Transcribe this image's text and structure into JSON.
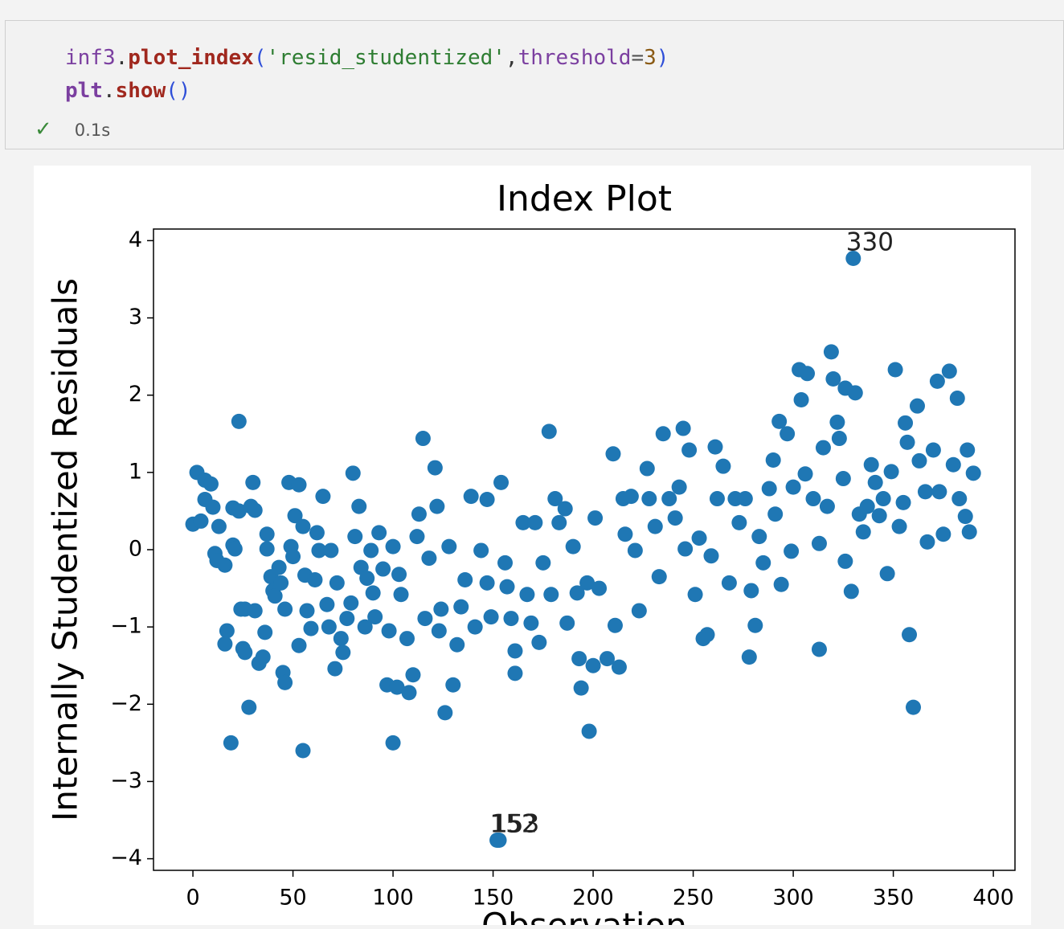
{
  "code": {
    "lines": [
      [
        {
          "text": "inf3",
          "color": "#7b3fa0",
          "bold": false
        },
        {
          "text": ".",
          "color": "#333333",
          "bold": false
        },
        {
          "text": "plot_index",
          "color": "#a0281e",
          "bold": true
        },
        {
          "text": "(",
          "color": "#2f4fd8",
          "bold": false
        },
        {
          "text": "'resid_studentized'",
          "color": "#2e7d32",
          "bold": false
        },
        {
          "text": ",",
          "color": "#333333",
          "bold": false
        },
        {
          "text": "threshold",
          "color": "#7b3fa0",
          "bold": false
        },
        {
          "text": "=",
          "color": "#555555",
          "bold": false
        },
        {
          "text": "3",
          "color": "#8a5a14",
          "bold": false
        },
        {
          "text": ")",
          "color": "#2f4fd8",
          "bold": false
        }
      ],
      [
        {
          "text": "plt",
          "color": "#7b3fa0",
          "bold": true
        },
        {
          "text": ".",
          "color": "#333333",
          "bold": false
        },
        {
          "text": "show",
          "color": "#a0281e",
          "bold": true
        },
        {
          "text": "()",
          "color": "#2f4fd8",
          "bold": false
        }
      ]
    ],
    "status": "0.1s"
  },
  "chart_data": {
    "type": "scatter",
    "title": "Index Plot",
    "xlabel": "Observation",
    "ylabel": "Internally Studentized Residuals",
    "color": "#1f77b4",
    "xlim": [
      -19.7,
      410.8
    ],
    "ylim": [
      -4.15,
      4.15
    ],
    "xticks": [
      0,
      50,
      100,
      150,
      200,
      250,
      300,
      350,
      400
    ],
    "yticks": [
      {
        "value": -4,
        "label": "−4"
      },
      {
        "value": -3,
        "label": "−3"
      },
      {
        "value": -2,
        "label": "−2"
      },
      {
        "value": -1,
        "label": "−1"
      },
      0,
      1,
      2,
      3,
      4
    ],
    "annotations": [
      {
        "text": "330",
        "x": 330,
        "y": 3.77
      },
      {
        "text": "152",
        "x": 152,
        "y": -3.76
      },
      {
        "text": "153",
        "x": 153,
        "y": -3.76
      }
    ],
    "x": [
      0,
      2,
      4,
      6,
      9,
      6,
      10,
      13,
      11,
      12,
      16,
      17,
      16,
      19,
      20,
      21,
      20,
      23,
      23,
      24,
      25,
      26,
      26,
      28,
      30,
      29,
      31,
      31,
      33,
      35,
      36,
      37,
      37,
      39,
      40,
      41,
      43,
      44,
      45,
      46,
      46,
      48,
      49,
      50,
      51,
      53,
      53,
      55,
      55,
      56,
      57,
      59,
      61,
      62,
      63,
      65,
      67,
      68,
      69,
      71,
      72,
      74,
      75,
      77,
      79,
      80,
      81,
      83,
      84,
      86,
      87,
      89,
      90,
      91,
      93,
      95,
      97,
      98,
      100,
      100,
      102,
      103,
      104,
      107,
      108,
      110,
      112,
      113,
      115,
      116,
      118,
      121,
      122,
      123,
      124,
      126,
      128,
      130,
      132,
      134,
      136,
      139,
      141,
      144,
      147,
      147,
      149,
      152,
      153,
      154,
      156,
      157,
      159,
      161,
      161,
      165,
      167,
      169,
      171,
      173,
      175,
      178,
      179,
      181,
      183,
      186,
      187,
      190,
      192,
      193,
      194,
      197,
      198,
      200,
      201,
      203,
      207,
      210,
      211,
      213,
      215,
      216,
      219,
      221,
      223,
      227,
      228,
      231,
      233,
      235,
      238,
      241,
      243,
      245,
      246,
      248,
      251,
      253,
      255,
      257,
      259,
      261,
      262,
      265,
      268,
      271,
      273,
      276,
      278,
      279,
      281,
      283,
      285,
      288,
      290,
      291,
      293,
      294,
      297,
      299,
      300,
      303,
      304,
      306,
      307,
      310,
      313,
      313,
      315,
      317,
      319,
      320,
      322,
      323,
      325,
      326,
      326,
      329,
      330,
      331,
      333,
      335,
      337,
      339,
      341,
      343,
      345,
      347,
      349,
      351,
      353,
      355,
      356,
      357,
      358,
      360,
      362,
      363,
      366,
      367,
      370,
      372,
      373,
      375,
      378,
      380,
      382,
      383,
      386,
      387,
      388,
      390
    ],
    "values": [
      0.33,
      1.0,
      0.37,
      0.9,
      0.85,
      0.65,
      0.55,
      0.3,
      -0.05,
      -0.14,
      -0.2,
      -1.05,
      -1.22,
      -2.5,
      0.06,
      0.01,
      0.54,
      1.66,
      0.5,
      -0.77,
      -1.28,
      -1.33,
      -0.77,
      -2.04,
      0.87,
      0.56,
      0.51,
      -0.79,
      -1.47,
      -1.39,
      -1.07,
      0.2,
      0.01,
      -0.35,
      -0.53,
      -0.6,
      -0.23,
      -0.43,
      -1.59,
      -1.72,
      -0.77,
      0.87,
      0.04,
      -0.09,
      0.44,
      0.84,
      -1.24,
      -2.6,
      0.3,
      -0.33,
      -0.79,
      -1.02,
      -0.39,
      0.22,
      -0.01,
      0.69,
      -0.71,
      -1.0,
      -0.01,
      -1.54,
      -0.43,
      -1.15,
      -1.33,
      -0.89,
      -0.69,
      0.99,
      0.17,
      0.56,
      -0.23,
      -1.0,
      -0.37,
      -0.01,
      -0.56,
      -0.87,
      0.22,
      -0.25,
      -1.75,
      -1.05,
      0.04,
      -2.5,
      -1.78,
      -0.32,
      -0.58,
      -1.15,
      -1.85,
      -1.62,
      0.17,
      0.46,
      1.44,
      -0.89,
      -0.11,
      1.06,
      0.56,
      -1.05,
      -0.77,
      -2.11,
      0.04,
      -1.75,
      -1.23,
      -0.74,
      -0.39,
      0.69,
      -1.0,
      -0.01,
      0.65,
      -0.43,
      -0.87,
      -3.76,
      -3.76,
      0.87,
      -0.17,
      -0.48,
      -0.89,
      -1.6,
      -1.31,
      0.35,
      -0.58,
      -0.95,
      0.35,
      -1.2,
      -0.17,
      1.53,
      -0.58,
      0.66,
      0.35,
      0.53,
      -0.95,
      0.04,
      -0.56,
      -1.41,
      -1.79,
      -0.43,
      -2.35,
      -1.5,
      0.41,
      -0.5,
      -1.41,
      1.24,
      -0.98,
      -1.52,
      0.66,
      0.2,
      0.69,
      -0.01,
      -0.79,
      1.05,
      0.66,
      0.3,
      -0.35,
      1.5,
      0.66,
      0.41,
      0.81,
      1.57,
      0.01,
      1.29,
      -0.58,
      0.15,
      -1.15,
      -1.1,
      -0.08,
      1.33,
      0.66,
      1.08,
      -0.43,
      0.66,
      0.35,
      0.66,
      -1.39,
      -0.53,
      -0.98,
      0.17,
      -0.17,
      0.79,
      1.16,
      0.46,
      1.66,
      -0.45,
      1.5,
      -0.02,
      0.81,
      2.33,
      1.94,
      0.98,
      2.28,
      0.66,
      0.08,
      -1.29,
      1.32,
      0.56,
      2.56,
      2.21,
      1.65,
      1.44,
      0.92,
      2.09,
      -0.15,
      -0.54,
      3.77,
      2.03,
      0.46,
      0.23,
      0.56,
      1.1,
      0.87,
      0.44,
      0.66,
      -0.31,
      1.01,
      2.33,
      0.3,
      0.61,
      1.64,
      1.39,
      -1.1,
      -2.04,
      1.86,
      1.15,
      0.75,
      0.1,
      1.29,
      2.18,
      0.75,
      0.2,
      2.31,
      1.1,
      1.96,
      0.66,
      0.43,
      1.29,
      0.23,
      0.99
    ]
  }
}
